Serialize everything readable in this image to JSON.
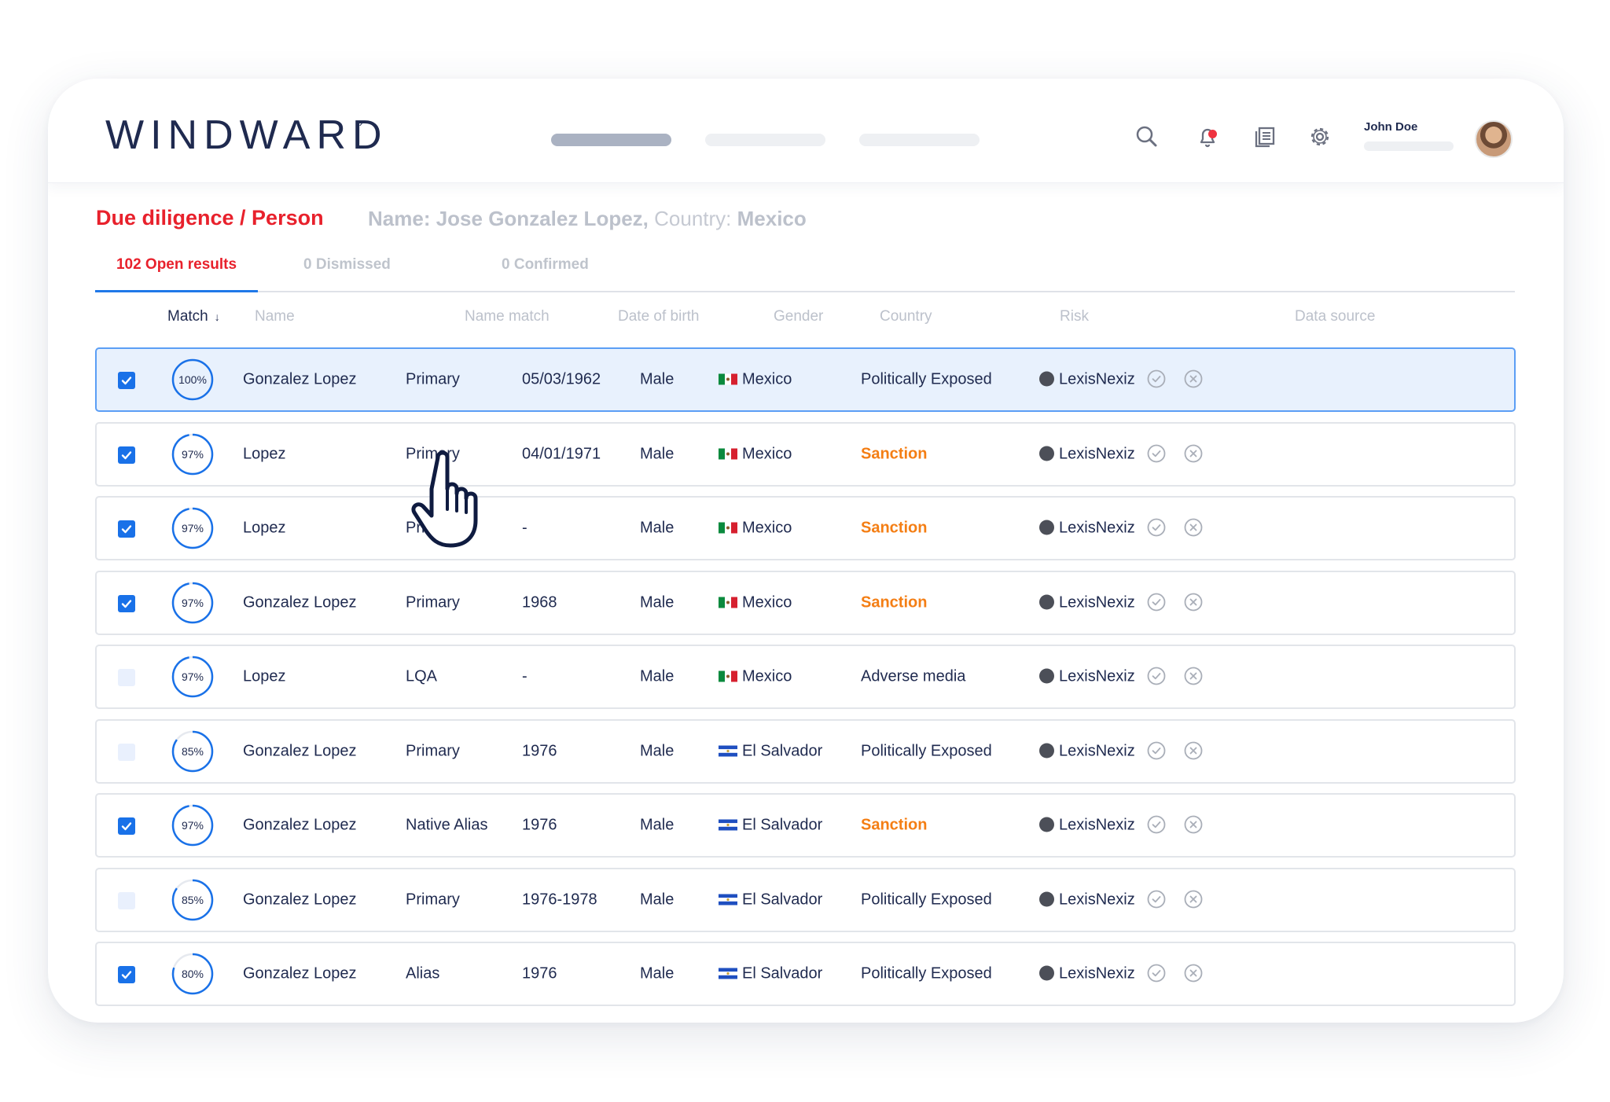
{
  "header": {
    "logo": "WINDWARD",
    "logo_mark": "‹›",
    "user_name": "John Doe",
    "icons": [
      "search-icon",
      "bell-icon",
      "reports-icon",
      "gear-icon"
    ],
    "colors": {
      "brand": "#1f2a4f",
      "accent": "#e8212c",
      "primary": "#1971e8"
    }
  },
  "page": {
    "breadcrumb": "Due diligence / Person",
    "subject_name_label": "Name:",
    "subject_name": "Jose Gonzalez Lopez,",
    "subject_country_label": "Country:",
    "subject_country": "Mexico"
  },
  "tabs": [
    {
      "label": "102 Open results",
      "active": true
    },
    {
      "label": "0 Dismissed",
      "active": false
    },
    {
      "label": "0 Confirmed",
      "active": false
    }
  ],
  "columns": [
    "Match",
    "Name",
    "Name match",
    "Date of birth",
    "Gender",
    "Country",
    "Risk",
    "Data source"
  ],
  "rows": [
    {
      "checked": true,
      "match": "100%",
      "match_value": 100,
      "name": "Gonzalez Lopez",
      "name_match": "Primary",
      "dob": "05/03/1962",
      "gender": "Male",
      "country": "Mexico",
      "flag": "mexico-flag-icon",
      "risk": "Politically Exposed",
      "risk_level": "normal",
      "source": "LexisNexiz",
      "selected": true
    },
    {
      "checked": true,
      "match": "97%",
      "match_value": 97,
      "name": "Lopez",
      "name_match": "Primary",
      "dob": "04/01/1971",
      "gender": "Male",
      "country": "Mexico",
      "flag": "mexico-flag-icon",
      "risk": "Sanction",
      "risk_level": "sanction",
      "source": "LexisNexiz",
      "selected": false
    },
    {
      "checked": true,
      "match": "97%",
      "match_value": 97,
      "name": "Lopez",
      "name_match": "Primary",
      "dob": "-",
      "gender": "Male",
      "country": "Mexico",
      "flag": "mexico-flag-icon",
      "risk": "Sanction",
      "risk_level": "sanction",
      "source": "LexisNexiz",
      "selected": false
    },
    {
      "checked": true,
      "match": "97%",
      "match_value": 97,
      "name": "Gonzalez Lopez",
      "name_match": "Primary",
      "dob": "1968",
      "gender": "Male",
      "country": "Mexico",
      "flag": "mexico-flag-icon",
      "risk": "Sanction",
      "risk_level": "sanction",
      "source": "LexisNexiz",
      "selected": false
    },
    {
      "checked": false,
      "match": "97%",
      "match_value": 97,
      "name": "Lopez",
      "name_match": "LQA",
      "dob": "-",
      "gender": "Male",
      "country": "Mexico",
      "flag": "mexico-flag-icon",
      "risk": "Adverse media",
      "risk_level": "normal",
      "source": "LexisNexiz",
      "selected": false
    },
    {
      "checked": false,
      "match": "85%",
      "match_value": 85,
      "name": "Gonzalez Lopez",
      "name_match": "Primary",
      "dob": "1976",
      "gender": "Male",
      "country": "El Salvador",
      "flag": "el-salvador-flag-icon",
      "risk": "Politically Exposed",
      "risk_level": "normal",
      "source": "LexisNexiz",
      "selected": false
    },
    {
      "checked": true,
      "match": "97%",
      "match_value": 97,
      "name": "Gonzalez Lopez",
      "name_match": "Native Alias",
      "dob": "1976",
      "gender": "Male",
      "country": "El Salvador",
      "flag": "el-salvador-flag-icon",
      "risk": "Sanction",
      "risk_level": "sanction",
      "source": "LexisNexiz",
      "selected": false
    },
    {
      "checked": false,
      "match": "85%",
      "match_value": 85,
      "name": "Gonzalez Lopez",
      "name_match": "Primary",
      "dob": "1976-1978",
      "gender": "Male",
      "country": "El Salvador",
      "flag": "el-salvador-flag-icon",
      "risk": "Politically Exposed",
      "risk_level": "normal",
      "source": "LexisNexiz",
      "selected": false
    },
    {
      "checked": true,
      "match": "80%",
      "match_value": 80,
      "name": "Gonzalez Lopez",
      "name_match": "Alias",
      "dob": "1976",
      "gender": "Male",
      "country": "El Salvador",
      "flag": "el-salvador-flag-icon",
      "risk": "Politically Exposed",
      "risk_level": "normal",
      "source": "LexisNexiz",
      "selected": false
    }
  ]
}
